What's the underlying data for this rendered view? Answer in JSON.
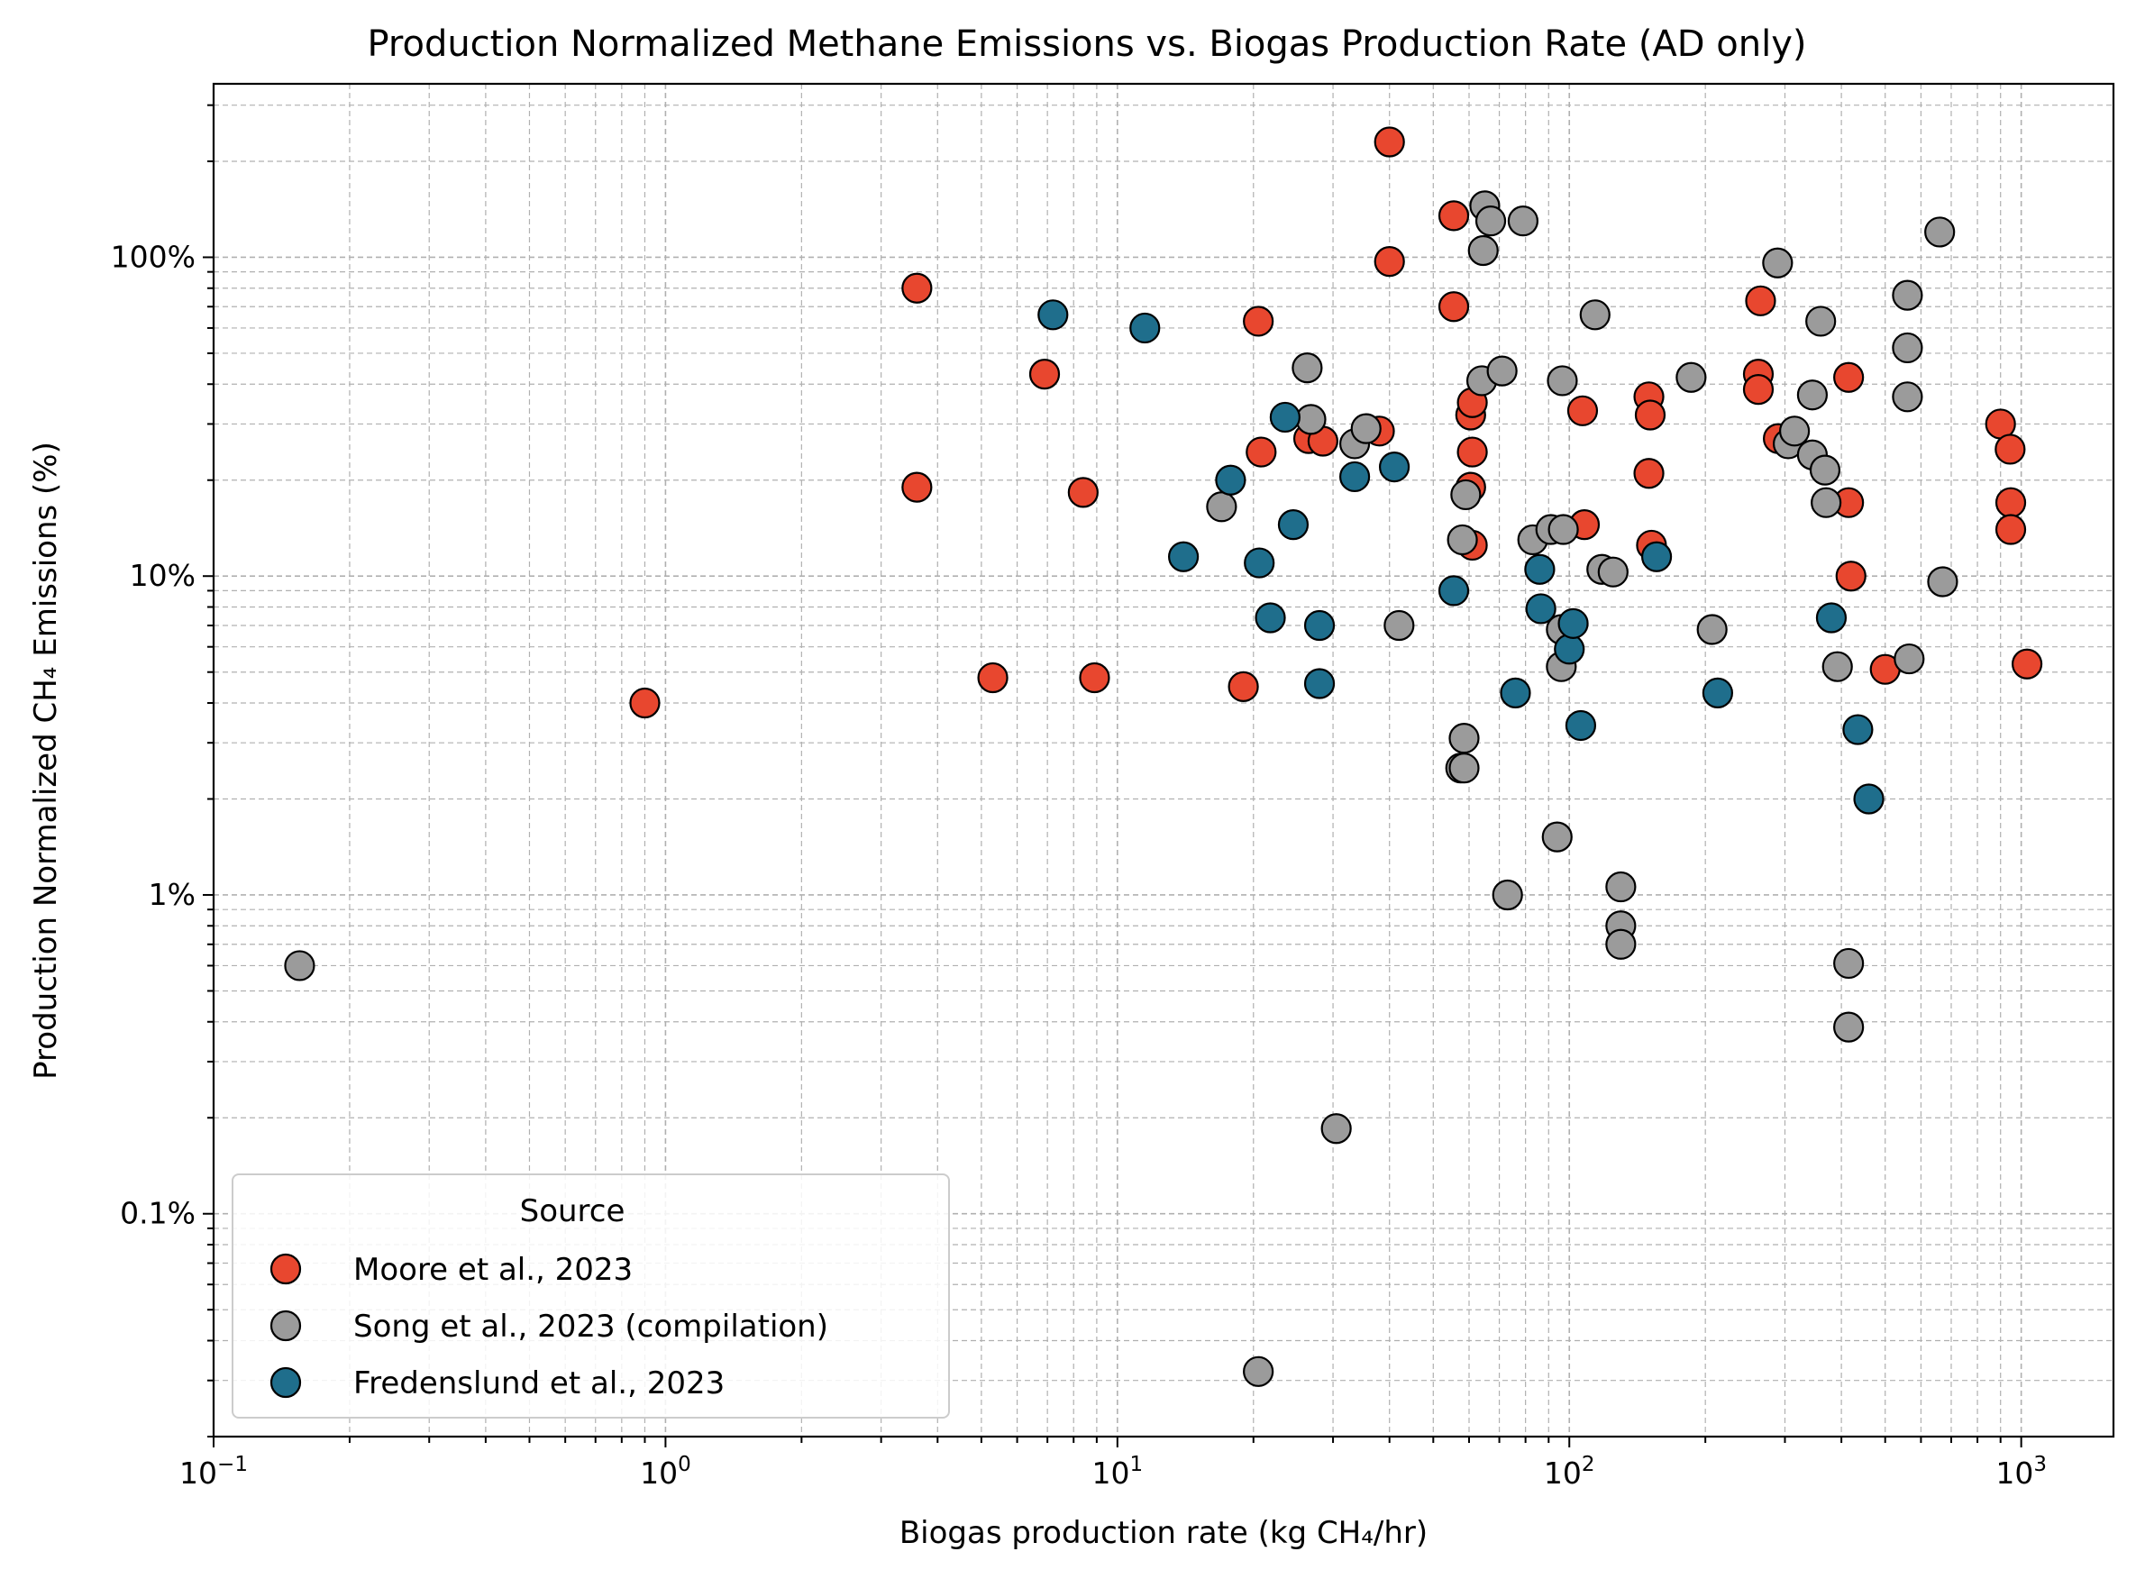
{
  "chart_data": {
    "type": "scatter",
    "title": "Production Normalized Methane Emissions vs. Biogas Production Rate (AD only)",
    "xlabel": "Biogas production rate (kg CH₄/hr)",
    "ylabel": "Production Normalized CH₄ Emissions (%)",
    "x_scale": "log",
    "y_scale": "log",
    "xlim": [
      0.1,
      1600
    ],
    "ylim": [
      0.02,
      350
    ],
    "x_ticks": [
      {
        "base": "10",
        "exp": "−1",
        "value": 0.1
      },
      {
        "base": "10",
        "exp": "0",
        "value": 1
      },
      {
        "base": "10",
        "exp": "1",
        "value": 10
      },
      {
        "base": "10",
        "exp": "2",
        "value": 100
      },
      {
        "base": "10",
        "exp": "3",
        "value": 1000
      }
    ],
    "y_ticks": [
      {
        "label": "0.1%",
        "value": 0.1
      },
      {
        "label": "1%",
        "value": 1
      },
      {
        "label": "10%",
        "value": 10
      },
      {
        "label": "100%",
        "value": 100
      }
    ],
    "grid": true,
    "legend": {
      "title": "Source",
      "position": "bottom-left"
    },
    "series": [
      {
        "name": "Moore et al., 2023",
        "color": "#e8472f",
        "x": [
          0.9,
          3.6,
          3.6,
          5.3,
          6.9,
          8.4,
          8.9,
          19,
          20.5,
          20.8,
          26.5,
          28.5,
          38,
          40,
          40,
          55.5,
          55.5,
          60.5,
          61,
          61,
          60.5,
          61,
          107,
          108,
          150,
          151,
          150,
          152,
          262,
          262,
          265,
          290,
          415,
          415,
          420,
          500,
          900,
          945,
          948,
          948,
          1030
        ],
        "y": [
          4.0,
          80,
          19,
          4.8,
          43,
          18.3,
          4.8,
          4.5,
          63,
          24.5,
          27,
          26.5,
          28.5,
          230,
          97,
          135,
          70,
          32,
          35,
          24.5,
          19,
          12.5,
          33,
          14.5,
          36.5,
          32,
          21,
          12.5,
          43,
          38.5,
          73,
          27,
          42,
          17,
          10,
          5.1,
          30,
          25,
          17,
          14,
          5.3
        ]
      },
      {
        "name": "Song et al., 2023 (compilation)",
        "color": "#9b9b9b",
        "x": [
          0.155,
          17,
          20.5,
          26.3,
          26.8,
          30.5,
          33.5,
          35.5,
          42,
          57.5,
          58,
          58.5,
          58.5,
          59,
          64,
          64.5,
          65,
          67,
          71,
          73,
          79,
          83,
          91,
          94,
          96,
          96,
          96.5,
          97,
          114,
          118,
          125,
          130,
          130,
          130,
          186,
          207,
          289,
          305,
          315,
          345,
          345,
          360,
          368,
          370,
          392,
          415,
          415,
          560,
          560,
          560,
          565,
          660,
          670
        ],
        "y": [
          0.6,
          16.5,
          0.032,
          45,
          31,
          0.185,
          26,
          29,
          7.0,
          2.5,
          13,
          3.1,
          2.5,
          18,
          41,
          105,
          145,
          130,
          44,
          1.0,
          130,
          13,
          14,
          1.52,
          6.8,
          5.2,
          41,
          14,
          66,
          10.5,
          10.3,
          1.06,
          0.8,
          0.7,
          42,
          6.8,
          96,
          26,
          28.5,
          37,
          24,
          63,
          21.5,
          17,
          5.2,
          0.61,
          0.385,
          76,
          52,
          36.5,
          5.5,
          120,
          9.6
        ]
      },
      {
        "name": "Fredenslund et al., 2023",
        "color": "#1f6e8c",
        "x": [
          7.2,
          11.5,
          14,
          17.8,
          20.6,
          21.8,
          23.5,
          24.5,
          28,
          28,
          33.5,
          41,
          55.5,
          76,
          86,
          86.5,
          100,
          102,
          106,
          156,
          213,
          380,
          435,
          460
        ],
        "y": [
          66,
          60,
          11.5,
          20,
          11,
          7.4,
          31.5,
          14.5,
          7.0,
          4.6,
          20.5,
          22,
          9.0,
          4.3,
          10.5,
          7.9,
          5.9,
          7.1,
          3.4,
          11.5,
          4.3,
          7.4,
          3.3,
          2.0
        ]
      }
    ]
  }
}
